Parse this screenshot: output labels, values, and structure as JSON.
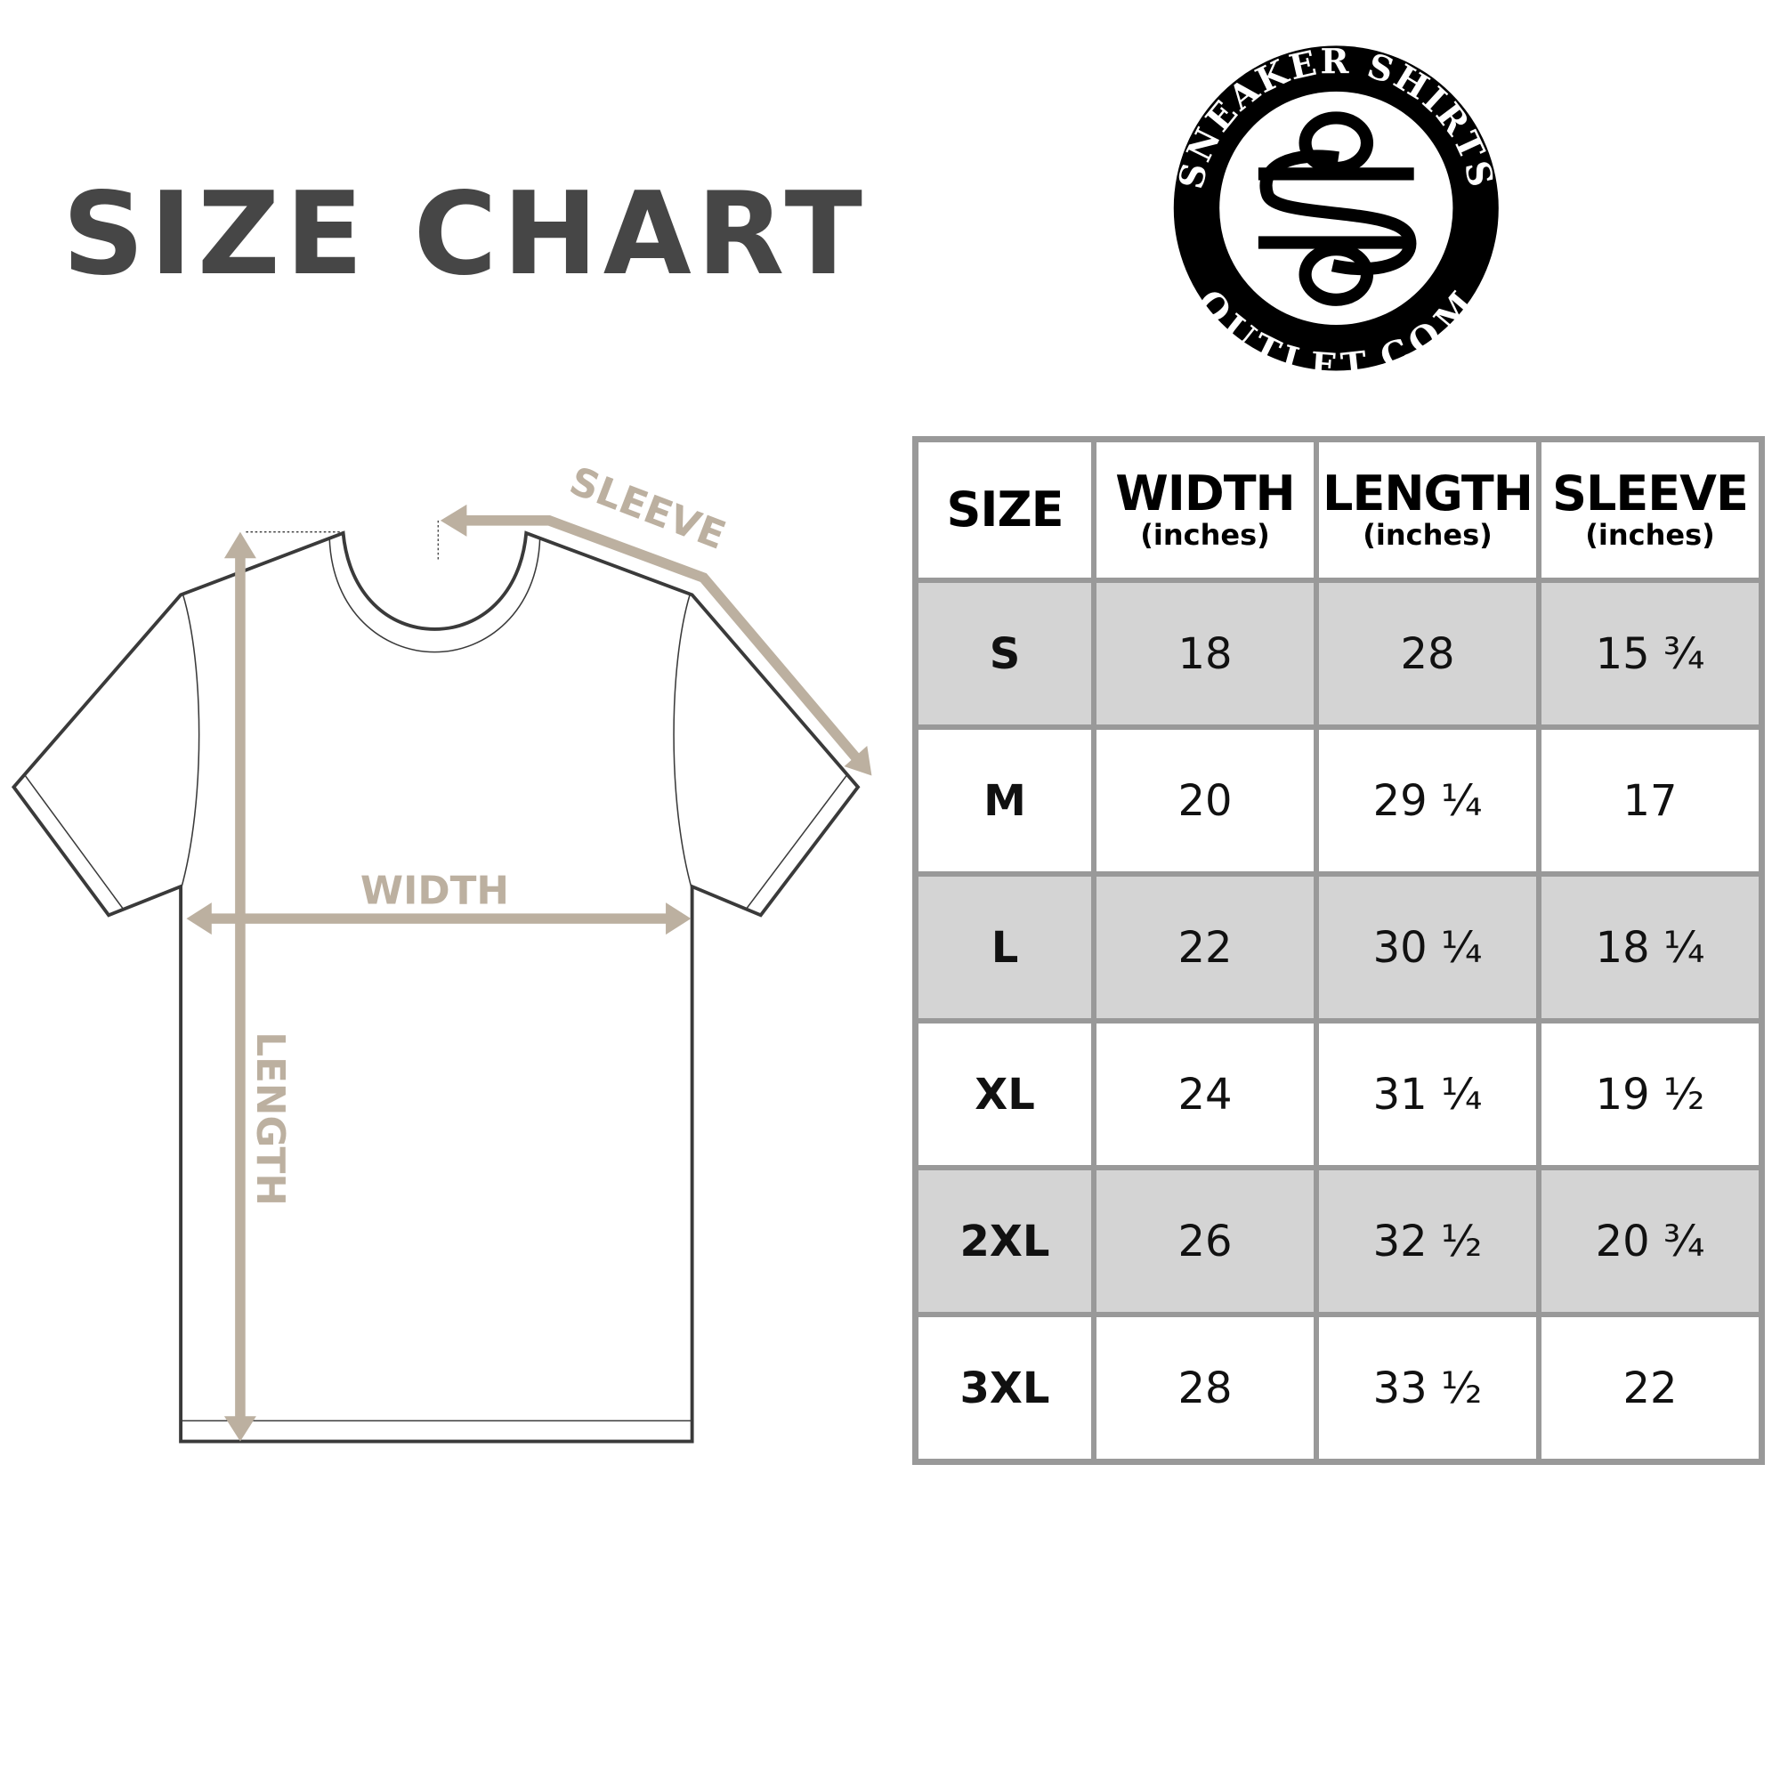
{
  "title": "SIZE CHART",
  "logo": {
    "top_text": "SNEAKER SHIRTS",
    "bottom_text": "OUTLET.COM",
    "monogram": "SO"
  },
  "diagram": {
    "labels": {
      "width": "WIDTH",
      "length": "LENGTH",
      "sleeve": "SLEEVE"
    },
    "arrow_color": "#bcb0a0",
    "outline_color": "#3a3a3a"
  },
  "table": {
    "headers": [
      {
        "label": "SIZE",
        "unit": ""
      },
      {
        "label": "WIDTH",
        "unit": "(inches)"
      },
      {
        "label": "LENGTH",
        "unit": "(inches)"
      },
      {
        "label": "SLEEVE",
        "unit": "(inches)"
      }
    ],
    "rows": [
      [
        "S",
        "18",
        "28",
        "15 ¾"
      ],
      [
        "M",
        "20",
        "29 ¼",
        "17"
      ],
      [
        "L",
        "22",
        "30 ¼",
        "18 ¼"
      ],
      [
        "XL",
        "24",
        "31 ¼",
        "19 ½"
      ],
      [
        "2XL",
        "26",
        "32 ½",
        "20 ¾"
      ],
      [
        "3XL",
        "28",
        "33 ½",
        "22"
      ]
    ],
    "shade_color": "#d4d4d4",
    "border_color": "#999999"
  }
}
